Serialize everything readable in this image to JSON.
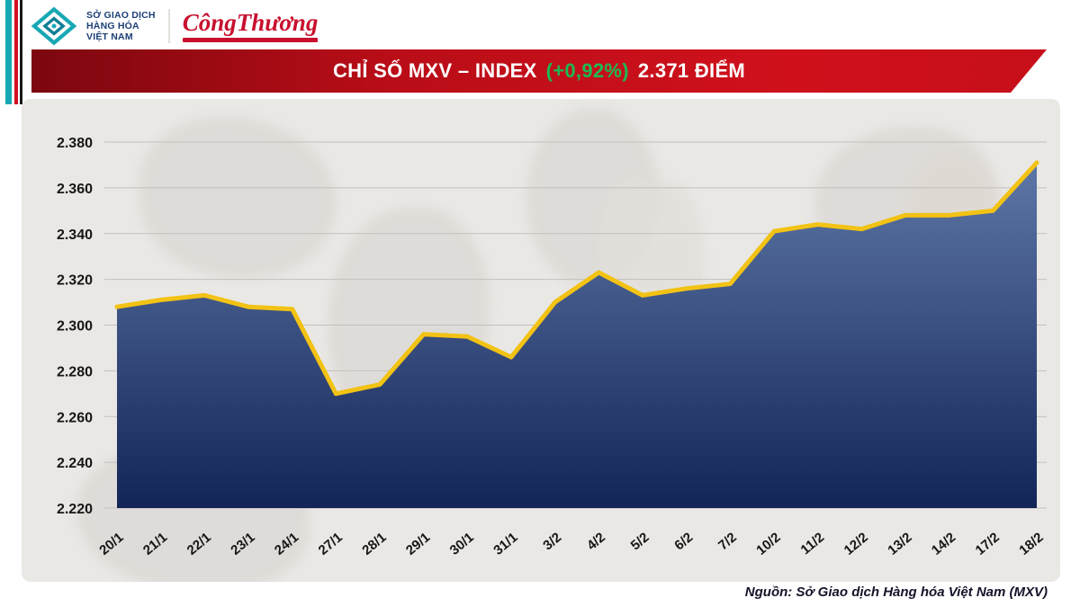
{
  "header": {
    "mxv_logo": {
      "line1": "SỞ GIAO DỊCH",
      "line2": "HÀNG HÓA",
      "line3": "VIỆT NAM"
    },
    "congthuong_logo": "CôngThương"
  },
  "banner": {
    "title": "CHỈ SỐ MXV – INDEX",
    "change": "(+0,92%)",
    "value": "2.371 ĐIỂM",
    "change_color": "#1db954"
  },
  "chart_data": {
    "type": "area",
    "title": "CHỈ SỐ MXV – INDEX (+0,92%) 2.371 ĐIỂM",
    "x": [
      "20/1",
      "21/1",
      "22/1",
      "23/1",
      "24/1",
      "27/1",
      "28/1",
      "29/1",
      "30/1",
      "31/1",
      "3/2",
      "4/2",
      "5/2",
      "6/2",
      "7/2",
      "10/2",
      "11/2",
      "12/2",
      "13/2",
      "14/2",
      "17/2",
      "18/2"
    ],
    "values": [
      2.308,
      2.311,
      2.313,
      2.308,
      2.307,
      2.27,
      2.274,
      2.296,
      2.295,
      2.286,
      2.31,
      2.323,
      2.313,
      2.316,
      2.318,
      2.341,
      2.344,
      2.342,
      2.348,
      2.348,
      2.35,
      2.371
    ],
    "ylim": [
      2.22,
      2.38
    ],
    "ytick_step": 0.02,
    "ytick_labels": [
      "2.220",
      "2.240",
      "2.260",
      "2.280",
      "2.300",
      "2.320",
      "2.340",
      "2.360",
      "2.380"
    ],
    "grid": true,
    "legend": "none",
    "line_color": "#f2c214",
    "area_top_color": "#5d77a6",
    "area_bottom_color": "#132557",
    "grid_color": "#c2bfbc"
  },
  "footer": {
    "source": "Nguồn: Sở Giao dịch Hàng hóa Việt Nam (MXV)"
  }
}
